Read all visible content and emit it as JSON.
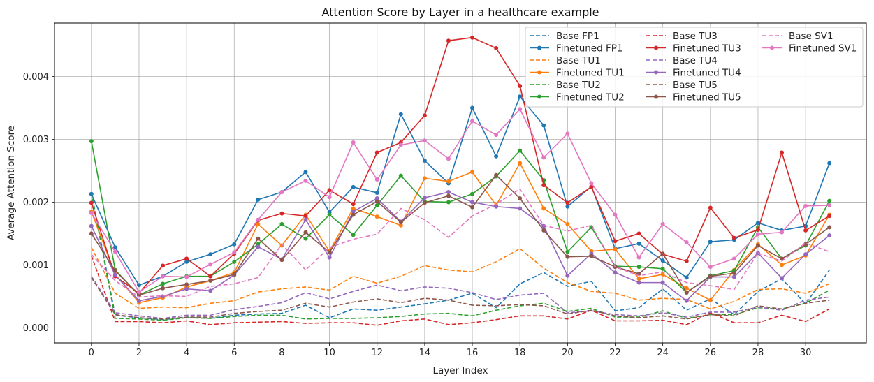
{
  "chart_data": {
    "type": "line",
    "title": "Attention Score by Layer in a healthcare example",
    "xlabel": "Layer Index",
    "ylabel": "Average Attention Score",
    "xlim": [
      -1.55,
      32.55
    ],
    "ylim": [
      -0.00024,
      0.00485
    ],
    "xticks": [
      0,
      2,
      4,
      6,
      8,
      10,
      12,
      14,
      16,
      18,
      20,
      22,
      24,
      26,
      28,
      30
    ],
    "yticks": [
      0.0,
      0.001,
      0.002,
      0.003,
      0.004
    ],
    "ytick_labels": [
      "0.000",
      "0.001",
      "0.002",
      "0.003",
      "0.004"
    ],
    "grid": true,
    "legend_position": "top-right",
    "legend_columns": 3,
    "x": [
      0,
      1,
      2,
      3,
      4,
      5,
      6,
      7,
      8,
      9,
      10,
      11,
      12,
      13,
      14,
      15,
      16,
      17,
      18,
      19,
      20,
      21,
      22,
      23,
      24,
      25,
      26,
      27,
      28,
      29,
      30,
      31
    ],
    "series": [
      {
        "name": "Base FP1",
        "color": "#1f77b4",
        "style": "dashed",
        "values": [
          0.00215,
          0.0002,
          0.00016,
          0.00013,
          0.00017,
          0.00015,
          0.0002,
          0.00022,
          0.00023,
          0.00036,
          0.00016,
          0.0003,
          0.00028,
          0.00033,
          0.00038,
          0.00044,
          0.00055,
          0.00032,
          0.0007,
          0.00088,
          0.00066,
          0.00074,
          0.00027,
          0.00032,
          0.00062,
          0.00028,
          0.00046,
          0.00021,
          0.00058,
          0.00078,
          0.00038,
          0.00092
        ]
      },
      {
        "name": "Finetuned FP1",
        "color": "#1f77b4",
        "style": "solid",
        "values": [
          0.00213,
          0.00128,
          0.00068,
          0.00082,
          0.00105,
          0.00117,
          0.00133,
          0.00204,
          0.00216,
          0.00248,
          0.00184,
          0.00224,
          0.00215,
          0.0034,
          0.00266,
          0.0023,
          0.0035,
          0.00273,
          0.00368,
          0.00322,
          0.00193,
          0.00225,
          0.00126,
          0.00134,
          0.00107,
          0.0008,
          0.00137,
          0.0014,
          0.00167,
          0.00155,
          0.00162,
          0.00262
        ]
      },
      {
        "name": "Base TU1",
        "color": "#ff7f0e",
        "style": "dashed",
        "values": [
          0.00128,
          0.00055,
          0.00031,
          0.00033,
          0.00032,
          0.00039,
          0.00043,
          0.00057,
          0.00062,
          0.00065,
          0.0006,
          0.00082,
          0.00071,
          0.00082,
          0.00099,
          0.00092,
          0.00089,
          0.00105,
          0.00126,
          0.00095,
          0.00072,
          0.00058,
          0.00055,
          0.00044,
          0.00047,
          0.00045,
          0.0003,
          0.00042,
          0.00061,
          0.00062,
          0.00055,
          0.0007
        ]
      },
      {
        "name": "Finetuned TU1",
        "color": "#ff7f0e",
        "style": "solid",
        "values": [
          0.00185,
          0.00085,
          0.0004,
          0.00048,
          0.00065,
          0.00075,
          0.00088,
          0.00165,
          0.00131,
          0.0018,
          0.00122,
          0.0019,
          0.00177,
          0.00163,
          0.00238,
          0.00233,
          0.00248,
          0.00195,
          0.00262,
          0.0019,
          0.00165,
          0.00122,
          0.00125,
          0.00078,
          0.00085,
          0.00063,
          0.00044,
          0.00092,
          0.00133,
          0.001,
          0.00115,
          0.0018
        ]
      },
      {
        "name": "Base TU2",
        "color": "#2ca02c",
        "style": "dashed",
        "values": [
          0.00215,
          0.00015,
          0.00014,
          0.00012,
          0.00016,
          0.00015,
          0.00018,
          0.0002,
          0.0002,
          0.00014,
          0.00015,
          0.00015,
          0.00016,
          0.00018,
          0.00022,
          0.00023,
          0.00019,
          0.00028,
          0.00035,
          0.00039,
          0.00026,
          0.00031,
          0.00017,
          0.00017,
          0.00027,
          0.00015,
          0.00021,
          0.00021,
          0.00032,
          0.0003,
          0.00039,
          0.0006
        ]
      },
      {
        "name": "Finetuned TU2",
        "color": "#2ca02c",
        "style": "solid",
        "values": [
          0.00297,
          0.00092,
          0.00052,
          0.0007,
          0.00082,
          0.00082,
          0.00105,
          0.00133,
          0.00165,
          0.00142,
          0.0018,
          0.00148,
          0.00195,
          0.00242,
          0.00201,
          0.002,
          0.00213,
          0.00241,
          0.00282,
          0.00235,
          0.00121,
          0.0016,
          0.00098,
          0.00097,
          0.00094,
          0.00056,
          0.00083,
          0.00091,
          0.0016,
          0.0011,
          0.00131,
          0.00202
        ]
      },
      {
        "name": "Base TU3",
        "color": "#d62728",
        "style": "dashed",
        "values": [
          0.00115,
          0.0001,
          0.0001,
          8e-05,
          0.00011,
          5e-05,
          8e-05,
          9e-05,
          0.0001,
          7e-05,
          8e-05,
          8e-05,
          4e-05,
          0.00011,
          0.00014,
          5e-05,
          8e-05,
          0.00013,
          0.00019,
          0.00019,
          0.00014,
          0.00028,
          0.00011,
          0.00011,
          0.00012,
          5e-05,
          0.00024,
          8e-05,
          8e-05,
          0.0002,
          0.0001,
          0.0003
        ]
      },
      {
        "name": "Finetuned TU3",
        "color": "#d62728",
        "style": "solid",
        "values": [
          0.00199,
          0.00082,
          0.00055,
          0.00099,
          0.0011,
          0.00082,
          0.00118,
          0.00171,
          0.00182,
          0.00178,
          0.00219,
          0.00197,
          0.00279,
          0.00295,
          0.00338,
          0.00457,
          0.00462,
          0.00445,
          0.00385,
          0.00227,
          0.00199,
          0.00224,
          0.00138,
          0.0015,
          0.00117,
          0.00106,
          0.00191,
          0.00143,
          0.00156,
          0.00279,
          0.00155,
          0.00178
        ]
      },
      {
        "name": "Base TU4",
        "color": "#9467bd",
        "style": "dashed",
        "values": [
          0.00082,
          0.00024,
          0.00019,
          0.00015,
          0.0002,
          0.0002,
          0.00029,
          0.00034,
          0.0004,
          0.00056,
          0.00046,
          0.00058,
          0.00068,
          0.00059,
          0.00065,
          0.00063,
          0.00056,
          0.00045,
          0.00052,
          0.00055,
          0.00024,
          0.00027,
          0.00021,
          0.00019,
          0.00024,
          0.00017,
          0.00025,
          0.00025,
          0.00033,
          0.00028,
          0.00044,
          0.00049
        ]
      },
      {
        "name": "Finetuned TU4",
        "color": "#9467bd",
        "style": "solid",
        "values": [
          0.00162,
          0.00084,
          0.00043,
          0.0005,
          0.00062,
          0.00059,
          0.00084,
          0.00129,
          0.00109,
          0.00172,
          0.00112,
          0.00185,
          0.00206,
          0.00169,
          0.00207,
          0.00216,
          0.002,
          0.00193,
          0.0019,
          0.00162,
          0.00083,
          0.00118,
          0.00088,
          0.00072,
          0.00072,
          0.00043,
          0.00081,
          0.00081,
          0.00119,
          0.00079,
          0.00117,
          0.00147
        ]
      },
      {
        "name": "Base TU5",
        "color": "#8c564b",
        "style": "dashed",
        "values": [
          0.0008,
          0.00021,
          0.00016,
          0.00014,
          0.00017,
          0.00017,
          0.00023,
          0.00026,
          0.00028,
          0.00039,
          0.00033,
          0.00041,
          0.00046,
          0.0004,
          0.00047,
          0.00044,
          0.00036,
          0.00035,
          0.00037,
          0.00035,
          0.00022,
          0.00028,
          0.00019,
          0.00016,
          0.00019,
          0.00014,
          0.00021,
          0.00019,
          0.00035,
          0.0003,
          0.00039,
          0.00044
        ]
      },
      {
        "name": "Finetuned TU5",
        "color": "#8c564b",
        "style": "solid",
        "values": [
          0.0015,
          0.00091,
          0.00052,
          0.00063,
          0.00069,
          0.00075,
          0.00085,
          0.00142,
          0.00108,
          0.00152,
          0.0012,
          0.0018,
          0.00201,
          0.00168,
          0.00199,
          0.0021,
          0.00192,
          0.00243,
          0.00206,
          0.00155,
          0.00113,
          0.00114,
          0.00097,
          0.00086,
          0.00118,
          0.00056,
          0.00082,
          0.00087,
          0.00131,
          0.0011,
          0.00133,
          0.0016
        ]
      },
      {
        "name": "Base SV1",
        "color": "#e377c2",
        "style": "dashed",
        "values": [
          0.00117,
          0.00075,
          0.00049,
          0.00051,
          0.0005,
          0.00066,
          0.0007,
          0.0008,
          0.00133,
          0.00092,
          0.00128,
          0.00141,
          0.00149,
          0.0019,
          0.00172,
          0.00144,
          0.00178,
          0.00197,
          0.00221,
          0.00163,
          0.00154,
          0.00163,
          0.00097,
          0.00083,
          0.00089,
          0.00072,
          0.00067,
          0.00061,
          0.00119,
          0.00106,
          0.00135,
          0.00121
        ]
      },
      {
        "name": "Finetuned SV1",
        "color": "#e377c2",
        "style": "solid",
        "values": [
          0.00183,
          0.00121,
          0.00057,
          0.00082,
          0.00081,
          0.00101,
          0.0012,
          0.00172,
          0.00216,
          0.00234,
          0.00208,
          0.00295,
          0.00236,
          0.00291,
          0.00298,
          0.00269,
          0.00329,
          0.00307,
          0.00348,
          0.00271,
          0.00309,
          0.0023,
          0.0018,
          0.00112,
          0.00165,
          0.00136,
          0.00097,
          0.0011,
          0.00149,
          0.00152,
          0.00194,
          0.00195
        ]
      }
    ]
  }
}
